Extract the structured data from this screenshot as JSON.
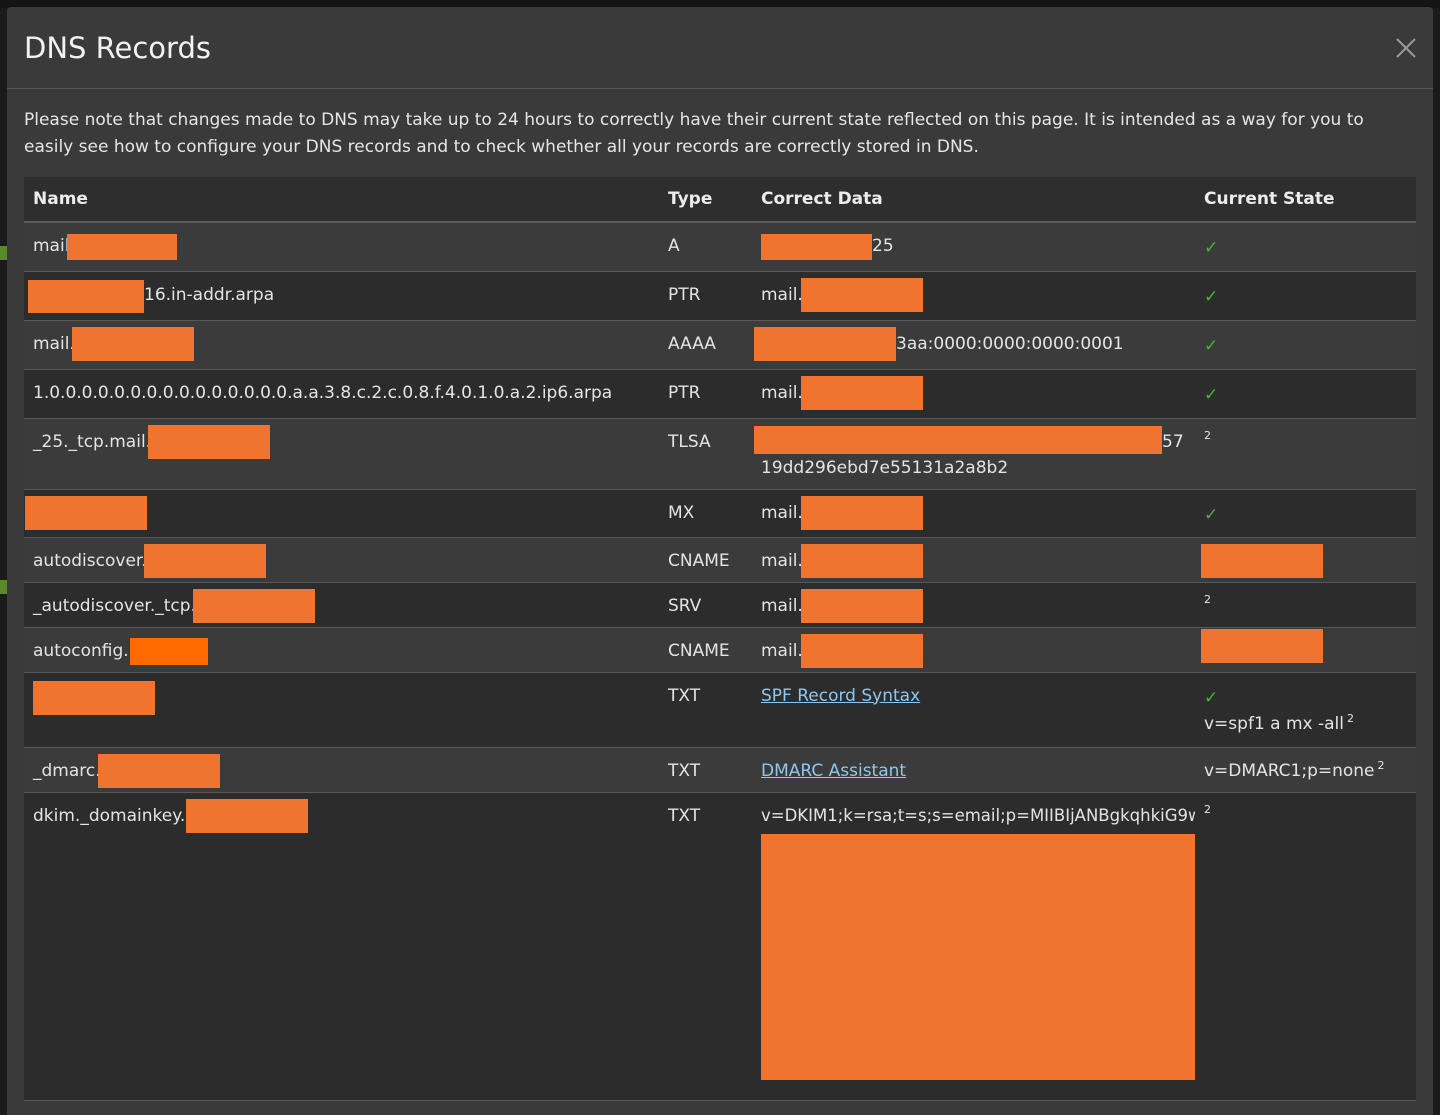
{
  "modal": {
    "title": "DNS Records",
    "close_icon": "close-icon",
    "note": "Please note that changes made to DNS may take up to 24 hours to correctly have their current state reflected on this page. It is intended as a way for you to easily see how to configure your DNS records and to check whether all your records are correctly stored in DNS."
  },
  "table": {
    "headers": {
      "name": "Name",
      "type": "Type",
      "correct_data": "Correct Data",
      "current_state": "Current State"
    },
    "rows": [
      {
        "name": "mail.",
        "type": "A",
        "data": "25",
        "state_check": "✓"
      },
      {
        "name": "16.in-addr.arpa",
        "type": "PTR",
        "data": "mail.",
        "state_check": "✓"
      },
      {
        "name": "mail.",
        "type": "AAAA",
        "data": "3aa:0000:0000:0000:0001",
        "state_check": "✓"
      },
      {
        "name": "1.0.0.0.0.0.0.0.0.0.0.0.0.0.0.0.a.a.3.8.c.2.c.0.8.f.4.0.1.0.a.2.ip6.arpa",
        "type": "PTR",
        "data": "mail.",
        "state_check": "✓"
      },
      {
        "name": "_25._tcp.mail.",
        "type": "TLSA",
        "data": "57",
        "data2": "19dd296ebd7e55131a2a8b2",
        "state_sup": "2"
      },
      {
        "name": "",
        "type": "MX",
        "data": "mail.",
        "state_check": "✓"
      },
      {
        "name": "autodiscover.",
        "type": "CNAME",
        "data": "mail."
      },
      {
        "name": "_autodiscover._tcp.",
        "type": "SRV",
        "data": "mail.",
        "state_sup": "2"
      },
      {
        "name": "autoconfig.",
        "type": "CNAME",
        "data": "mail."
      },
      {
        "name": "",
        "type": "TXT",
        "data_link": "SPF Record Syntax",
        "state_check": "✓",
        "state_text": "v=spf1 a mx -all",
        "state_sup": "2"
      },
      {
        "name": "_dmarc.",
        "type": "TXT",
        "data_link": "DMARC Assistant",
        "state_text": "v=DMARC1;p=none",
        "state_sup": "2"
      },
      {
        "name": "dkim._domainkey.",
        "type": "TXT",
        "data": "v=DKIM1;k=rsa;t=s;s=email;p=MIIBIjANBgkqhkiG9w",
        "state_sup": "2"
      }
    ]
  },
  "colors": {
    "modal_bg": "#3a3a3a",
    "row_dark": "#2c2c2c",
    "redaction": "#ee742f",
    "check": "#4fae3f",
    "link": "#8fc7ef"
  }
}
